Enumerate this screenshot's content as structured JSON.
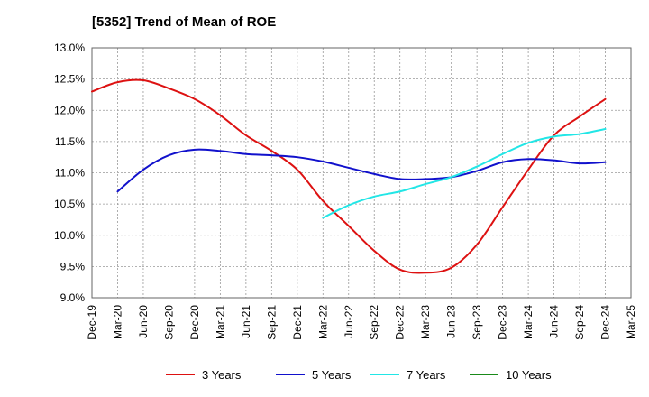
{
  "chart_data": {
    "type": "line",
    "title": "[5352]  Trend of Mean of ROE",
    "xlabel": "",
    "ylabel": "",
    "categories": [
      "Dec-19",
      "Mar-20",
      "Jun-20",
      "Sep-20",
      "Dec-20",
      "Mar-21",
      "Jun-21",
      "Sep-21",
      "Dec-21",
      "Mar-22",
      "Jun-22",
      "Sep-22",
      "Dec-22",
      "Mar-23",
      "Jun-23",
      "Sep-23",
      "Dec-23",
      "Mar-24",
      "Jun-24",
      "Sep-24",
      "Dec-24",
      "Mar-25"
    ],
    "ylim": [
      9.0,
      13.0
    ],
    "yticks": [
      "9.0%",
      "9.5%",
      "10.0%",
      "10.5%",
      "11.0%",
      "11.5%",
      "12.0%",
      "12.5%",
      "13.0%"
    ],
    "grid": "dashed",
    "legend_position": "bottom",
    "colors": {
      "3y": "#dd1111",
      "5y": "#1111cc",
      "7y": "#22e6e6",
      "10y": "#1a8a1a"
    },
    "series": [
      {
        "key": "3y",
        "name": "3 Years",
        "values": [
          12.3,
          12.45,
          12.48,
          12.35,
          12.18,
          11.92,
          11.6,
          11.35,
          11.05,
          10.55,
          10.15,
          9.75,
          9.45,
          9.4,
          9.48,
          9.85,
          10.45,
          11.05,
          11.6,
          11.9,
          12.18,
          null
        ]
      },
      {
        "key": "5y",
        "name": "5 Years",
        "values": [
          null,
          10.7,
          11.05,
          11.28,
          11.37,
          11.35,
          11.3,
          11.28,
          11.25,
          11.18,
          11.08,
          10.98,
          10.9,
          10.9,
          10.93,
          11.03,
          11.17,
          11.22,
          11.2,
          11.15,
          11.17,
          null
        ]
      },
      {
        "key": "7y",
        "name": "7 Years",
        "values": [
          null,
          null,
          null,
          null,
          null,
          null,
          null,
          null,
          null,
          10.28,
          10.48,
          10.62,
          10.7,
          10.82,
          10.93,
          11.1,
          11.3,
          11.48,
          11.58,
          11.62,
          11.7,
          null
        ]
      },
      {
        "key": "10y",
        "name": "10 Years",
        "values": [
          null,
          null,
          null,
          null,
          null,
          null,
          null,
          null,
          null,
          null,
          null,
          null,
          null,
          null,
          null,
          null,
          null,
          null,
          null,
          null,
          null,
          null
        ]
      }
    ]
  }
}
